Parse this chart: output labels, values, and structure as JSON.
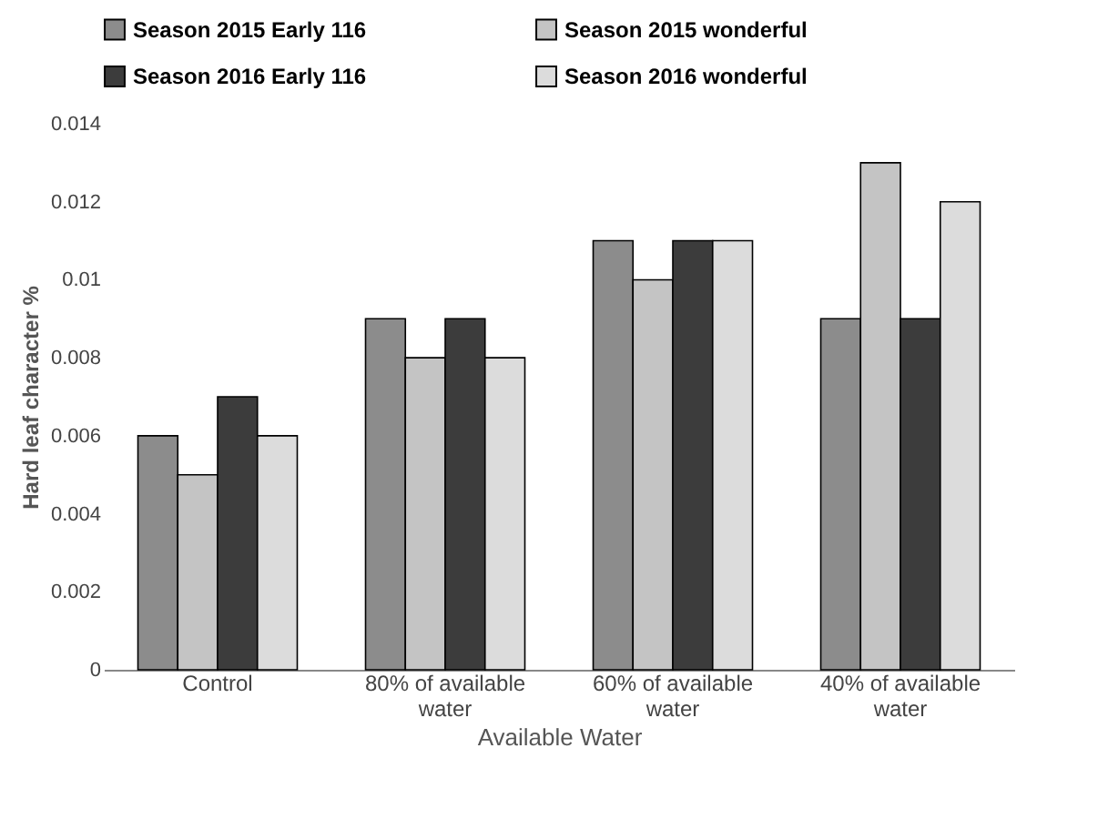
{
  "chart_data": {
    "type": "bar",
    "xlabel": "Available Water",
    "ylabel": "Hard leaf character %",
    "categories": [
      "Control",
      "80% of available water",
      "60% of available water",
      "40% of available water"
    ],
    "series": [
      {
        "name": "Season 2015 Early 116",
        "color": "#8c8c8c",
        "values": [
          0.006,
          0.009,
          0.011,
          0.009
        ]
      },
      {
        "name": "Season 2015 wonderful",
        "color": "#c4c4c4",
        "values": [
          0.005,
          0.008,
          0.01,
          0.013
        ]
      },
      {
        "name": "Season 2016 Early 116",
        "color": "#3c3c3c",
        "values": [
          0.007,
          0.009,
          0.011,
          0.009
        ]
      },
      {
        "name": "Season 2016 wonderful",
        "color": "#dcdcdc",
        "values": [
          0.006,
          0.008,
          0.011,
          0.012
        ]
      }
    ],
    "ylim": [
      0,
      0.014
    ],
    "yticks": [
      0,
      0.002,
      0.004,
      0.006,
      0.008,
      0.01,
      0.012,
      0.014
    ],
    "grid": false,
    "legend": "top"
  }
}
